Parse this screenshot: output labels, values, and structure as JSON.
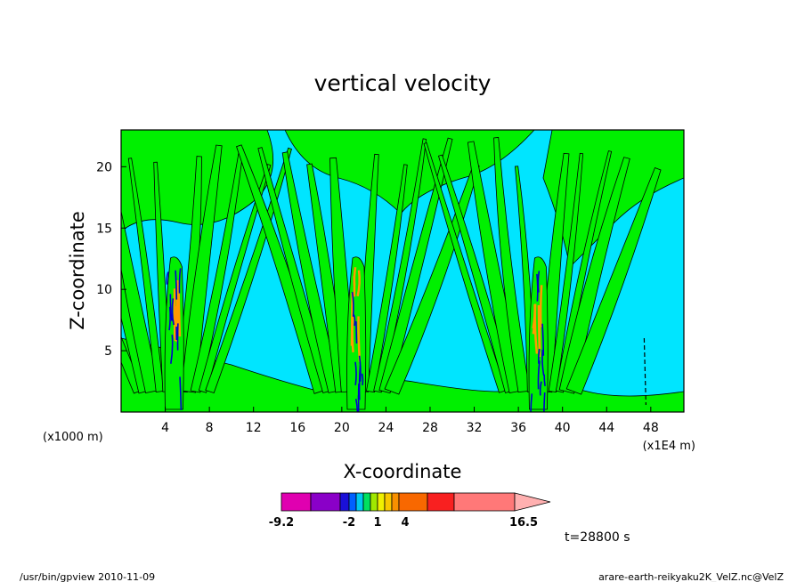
{
  "chart_data": {
    "type": "contour",
    "title": "vertical velocity",
    "xlabel": "X-coordinate",
    "ylabel": "Z-coordinate",
    "x_unit_left": "(x1000 m)",
    "x_unit_right": "(x1E4 m)",
    "xlim": [
      0,
      51
    ],
    "ylim": [
      0,
      23
    ],
    "x_ticks": [
      "4",
      "8",
      "12",
      "16",
      "20",
      "24",
      "28",
      "32",
      "36",
      "40",
      "44",
      "48"
    ],
    "y_ticks": [
      "5",
      "10",
      "15",
      "20"
    ],
    "updraft_columns_x": [
      4.8,
      21.3,
      37.8
    ],
    "time_label": "t=28800 s",
    "colorbar": {
      "labels": [
        "-9.2",
        "-2",
        "1",
        "4",
        "16.5"
      ],
      "colors": [
        "#e000b0",
        "#8a00c8",
        "#1a10d8",
        "#0060ff",
        "#00c8f0",
        "#00e060",
        "#a0e800",
        "#f0f000",
        "#f8c800",
        "#f89000",
        "#f86800",
        "#f82020",
        "#ff7878",
        "#ffb0b0"
      ]
    },
    "colors": {
      "background": "#00e5ff",
      "positive": "#00f000",
      "strong_positive": "#ff9900",
      "negative": "#0000cc"
    }
  },
  "footer": {
    "left": "/usr/bin/gpview   2010-11-09",
    "right": "arare-earth-reikyaku2K_VelZ.nc@VelZ"
  }
}
